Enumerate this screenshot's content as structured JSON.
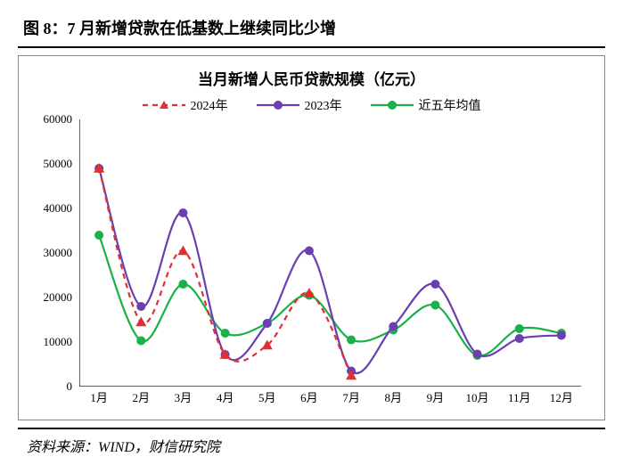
{
  "figure_title": "图 8：7 月新增贷款在低基数上继续同比少增",
  "source": "资料来源：WIND，财信研究院",
  "chart": {
    "type": "line",
    "title": "当月新增人民币贷款规模（亿元）",
    "categories": [
      "1月",
      "2月",
      "3月",
      "4月",
      "5月",
      "6月",
      "7月",
      "8月",
      "9月",
      "10月",
      "11月",
      "12月"
    ],
    "ylim": [
      0,
      60000
    ],
    "ytick_step": 10000,
    "yticks": [
      0,
      10000,
      20000,
      30000,
      40000,
      50000,
      60000
    ],
    "background_color": "#ffffff",
    "border_color": "#888888",
    "axis_color": "#000000",
    "tick_font_size": 13,
    "title_font_size": 17,
    "series": [
      {
        "name": "2024年",
        "color": "#e03030",
        "line_dash": "6,5",
        "line_width": 2.2,
        "marker": "triangle",
        "marker_size": 6,
        "values": [
          49000,
          14500,
          30500,
          7200,
          9300,
          21000,
          2500,
          null,
          null,
          null,
          null,
          null
        ]
      },
      {
        "name": "2023年",
        "color": "#6a3fb0",
        "line_dash": "none",
        "line_width": 2.2,
        "marker": "circle",
        "marker_size": 5,
        "values": [
          49000,
          18000,
          39000,
          7200,
          14200,
          30500,
          3500,
          13500,
          23000,
          7300,
          10800,
          11500
        ]
      },
      {
        "name": "近五年均值",
        "color": "#1bb04a",
        "line_dash": "none",
        "line_width": 2.2,
        "marker": "circle",
        "marker_size": 5,
        "values": [
          34000,
          10300,
          23000,
          12000,
          14200,
          20500,
          10500,
          12700,
          18300,
          7000,
          13000,
          12000
        ]
      }
    ]
  }
}
